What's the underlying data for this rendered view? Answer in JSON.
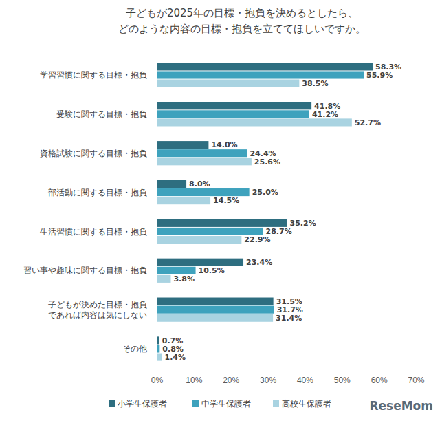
{
  "chart_data": {
    "type": "bar",
    "title": "子どもが2025年の目標・抱負を決めるとしたら、\nどのような内容の目標・抱負を立ててほしいですか。",
    "orientation": "horizontal",
    "data_labels": true,
    "grid": false,
    "legend": "bottom",
    "categories": [
      "学習習慣に関する目標・抱負",
      "受験に関する目標・抱負",
      "資格試験に関する目標・抱負",
      "部活動に関する目標・抱負",
      "生活習慣に関する目標・抱負",
      "習い事や趣味に関する目標・抱負",
      "子どもが決めた目標・抱負\nであれば内容は気にしない",
      "その他"
    ],
    "series": [
      {
        "name": "小学生保護者",
        "color": "#2e6e80",
        "values": [
          58.3,
          41.8,
          14.0,
          8.0,
          35.2,
          23.4,
          31.5,
          0.7
        ],
        "value_labels": [
          "58.3%",
          "41.8%",
          "14.0%",
          "8.0%",
          "35.2%",
          "23.4%",
          "31.5%",
          "0.7%"
        ]
      },
      {
        "name": "中学生保護者",
        "color": "#3ea2bd",
        "values": [
          55.9,
          41.2,
          24.4,
          25.0,
          28.7,
          10.5,
          31.7,
          0.8
        ],
        "value_labels": [
          "55.9%",
          "41.2%",
          "24.4%",
          "25.0%",
          "28.7%",
          "10.5%",
          "31.7%",
          "0.8%"
        ]
      },
      {
        "name": "高校生保護者",
        "color": "#a9d3e1",
        "values": [
          38.5,
          52.7,
          25.6,
          14.5,
          22.9,
          3.8,
          31.4,
          1.4
        ],
        "value_labels": [
          "38.5%",
          "52.7%",
          "25.6%",
          "14.5%",
          "22.9%",
          "3.8%",
          "31.4%",
          "1.4%"
        ]
      }
    ],
    "xlim": [
      0,
      70
    ],
    "xticks": [
      {
        "value": 0,
        "label": "0%"
      },
      {
        "value": 10,
        "label": "10%"
      },
      {
        "value": 20,
        "label": "20%"
      },
      {
        "value": 30,
        "label": "30%"
      },
      {
        "value": 40,
        "label": "40%"
      },
      {
        "value": 50,
        "label": "50%"
      },
      {
        "value": 60,
        "label": "60%"
      },
      {
        "value": 70,
        "label": "70%"
      }
    ],
    "annotations": [
      "ReseMom"
    ]
  }
}
